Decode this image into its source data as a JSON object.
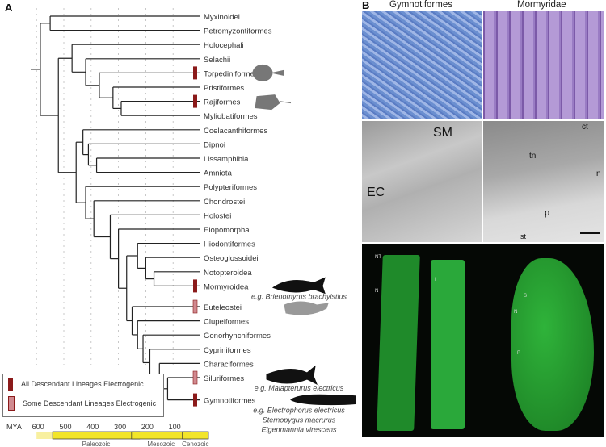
{
  "panel_a": {
    "label": "A",
    "taxa": [
      "Myxinoidei",
      "Petromyzontiformes",
      "Holocephali",
      "Selachii",
      "Torpediniformes",
      "Pristiformes",
      "Rajiformes",
      "Myliobatiformes",
      "Coelacanthiformes",
      "Dipnoi",
      "Lissamphibia",
      "Amniota",
      "Polypteriformes",
      "Chondrostei",
      "Holostei",
      "Elopomorpha",
      "Hiodontiformes",
      "Osteoglossoidei",
      "Notopteroidea",
      "Mormyroidea",
      "Euteleostei",
      "Clupeiformes",
      "Gonorhynchiformes",
      "Cypriniformes",
      "Characiformes",
      "Siluriformes",
      "Gymnotiformes"
    ],
    "examples": {
      "Mormyroidea": [
        "e.g. Brienomyrus brachyistius"
      ],
      "Siluriformes": [
        "e.g. Malapterurus electricus"
      ],
      "Gymnotiformes": [
        "e.g. Electrophorus electricus",
        "Sternopygus macrurus",
        "Eigenmannia virescens"
      ]
    },
    "tree": {
      "age": 586,
      "children": [
        {
          "age": 550,
          "children": [
            "Myxinoidei",
            "Petromyzontiformes"
          ]
        },
        {
          "age": 520,
          "children": [
            {
              "age": 470,
              "children": [
                "Holocephali",
                {
                  "age": 420,
                  "children": [
                    "Selachii",
                    {
                      "age": 370,
                      "children": [
                        "Torpediniformes",
                        {
                          "age": 320,
                          "children": [
                            "Pristiformes",
                            {
                              "age": 290,
                              "children": [
                                "Rajiformes",
                                "Myliobatiformes"
                              ]
                            }
                          ]
                        }
                      ]
                    }
                  ]
                }
              ]
            },
            {
              "age": 455,
              "children": [
                {
                  "age": 430,
                  "children": [
                    "Coelacanthiformes",
                    {
                      "age": 410,
                      "children": [
                        "Dipnoi",
                        {
                          "age": 380,
                          "children": [
                            "Lissamphibia",
                            "Amniota"
                          ]
                        }
                      ]
                    }
                  ]
                },
                {
                  "age": 420,
                  "children": [
                    "Polypteriformes",
                    {
                      "age": 390,
                      "children": [
                        "Chondrostei",
                        {
                          "age": 330,
                          "children": [
                            "Holostei",
                            {
                              "age": 300,
                              "children": [
                                "Elopomorpha",
                                {
                                  "age": 270,
                                  "children": [
                                    {
                                      "age": 230,
                                      "children": [
                                        "Hiodontiformes",
                                        {
                                          "age": 200,
                                          "children": [
                                            "Osteoglossoidei",
                                            {
                                              "age": 170,
                                              "children": [
                                                "Notopteroidea",
                                                "Mormyroidea"
                                              ]
                                            }
                                          ]
                                        }
                                      ]
                                    },
                                    {
                                      "age": 250,
                                      "children": [
                                        "Euteleostei",
                                        {
                                          "age": 230,
                                          "children": [
                                            "Clupeiformes",
                                            {
                                              "age": 210,
                                              "children": [
                                                "Gonorhynchiformes",
                                                {
                                                  "age": 185,
                                                  "children": [
                                                    "Cypriniformes",
                                                    {
                                                      "age": 150,
                                                      "children": [
                                                        "Characiformes",
                                                        {
                                                          "age": 120,
                                                          "children": [
                                                            "Siluriformes",
                                                            "Gymnotiformes"
                                                          ]
                                                        }
                                                      ]
                                                    }
                                                  ]
                                                }
                                              ]
                                            }
                                          ]
                                        }
                                      ]
                                    }
                                  ]
                                }
                              ]
                            }
                          ]
                        }
                      ]
                    }
                  ]
                }
              ]
            }
          ]
        }
      ]
    },
    "electrogenic": {
      "all": [
        "Torpediniformes",
        "Rajiformes",
        "Mormyroidea",
        "Gymnotiformes"
      ],
      "some": [
        "Euteleostei",
        "Siluriformes"
      ]
    },
    "legend": {
      "all": "All Descendant Lineages Electrogenic",
      "some": "Some Descendant Lineages Electrogenic"
    },
    "colors": {
      "all": "#8b1a1a",
      "some": "#d08a90",
      "branch": "#222222",
      "era_fill": "#f2e52a"
    },
    "time_axis": {
      "unit": "MYA",
      "ticks": [
        600,
        500,
        400,
        300,
        200,
        100
      ],
      "eras": [
        {
          "name": "Paleozoic",
          "from": 541,
          "to": 252
        },
        {
          "name": "Mesozoic",
          "from": 252,
          "to": 66
        },
        {
          "name": "Cenozoic",
          "from": 66,
          "to": 0
        }
      ]
    },
    "silhouettes": [
      "torpedo-ray",
      "stingray",
      "mormyrid",
      "euteleost",
      "catfish",
      "electric-eel"
    ]
  },
  "panel_b": {
    "label": "B",
    "col_titles": [
      "Gymnotiformes",
      "Mormyridae"
    ],
    "em_labels": {
      "sm": "SM",
      "ec": "EC",
      "ct": "ct",
      "tn": "tn",
      "n": "n",
      "p": "p",
      "st": "st"
    },
    "fluor_labels": {
      "nt": "NT",
      "n1": "N",
      "i": "I",
      "s": "S",
      "n2": "N",
      "p": "P"
    }
  }
}
